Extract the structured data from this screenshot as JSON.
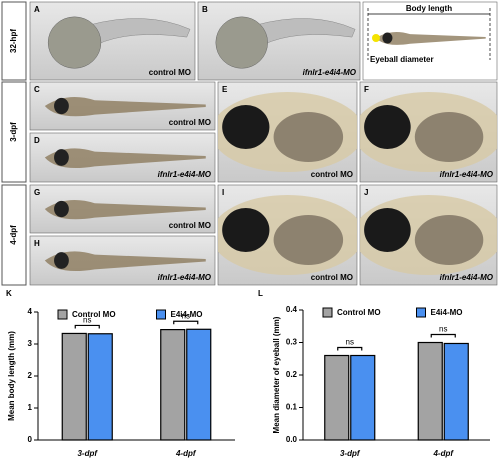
{
  "panels": {
    "rows": [
      "32-hpf",
      "3-dpf",
      "4-dpf"
    ],
    "items": [
      {
        "letter": "A",
        "caption": "control MO"
      },
      {
        "letter": "B",
        "caption": "ifnlr1-e4i4-MO"
      },
      {
        "letter": "C",
        "caption": "control MO"
      },
      {
        "letter": "D",
        "caption": "ifnlr1-e4i4-MO"
      },
      {
        "letter": "E",
        "caption": "control MO"
      },
      {
        "letter": "F",
        "caption": "ifnlr1-e4i4-MO"
      },
      {
        "letter": "G",
        "caption": "control MO"
      },
      {
        "letter": "H",
        "caption": "ifnlr1-e4i4-MO"
      },
      {
        "letter": "I",
        "caption": "control MO"
      },
      {
        "letter": "J",
        "caption": "ifnlr1-e4i4-MO"
      }
    ],
    "measure": {
      "body_length": "Body length",
      "eyeball_diameter": "Eyeball diameter"
    }
  },
  "chart_data": [
    {
      "type": "bar",
      "label": "K",
      "y_label": "Mean body length (mm)",
      "categories": [
        "3-dpf",
        "4-dpf"
      ],
      "series": [
        {
          "name": "Control MO",
          "color": "#a3a3a3",
          "values": [
            3.33,
            3.45
          ]
        },
        {
          "name": "E4i4-MO",
          "color": "#4a90f0",
          "values": [
            3.32,
            3.46
          ]
        }
      ],
      "annotations": [
        "ns",
        "ns"
      ],
      "ylim": [
        0,
        4
      ],
      "yticks": [
        0,
        1,
        2,
        3,
        4
      ]
    },
    {
      "type": "bar",
      "label": "L",
      "y_label": "Mean diameter of eyeball (mm)",
      "categories": [
        "3-dpf",
        "4-dpf"
      ],
      "series": [
        {
          "name": "Control MO",
          "color": "#a3a3a3",
          "values": [
            0.26,
            0.3
          ]
        },
        {
          "name": "E4i4-MO",
          "color": "#4a90f0",
          "values": [
            0.26,
            0.297
          ]
        }
      ],
      "annotations": [
        "ns",
        "ns"
      ],
      "ylim": [
        0,
        0.4
      ],
      "yticks": [
        {
          "value": 0,
          "label": "0.0"
        },
        0.1,
        0.2,
        0.3,
        0.4
      ]
    }
  ]
}
